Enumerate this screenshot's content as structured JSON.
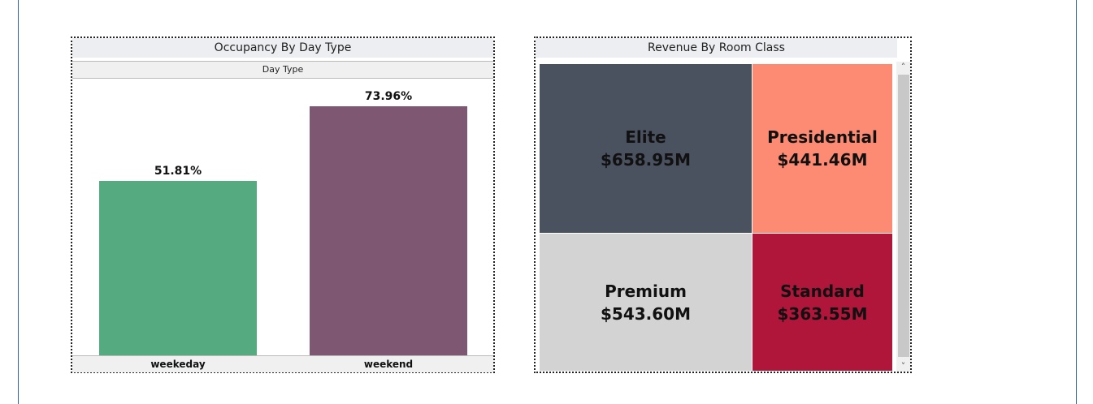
{
  "chart_data": [
    {
      "type": "bar",
      "title": "Occupancy By Day Type",
      "subheader": "Day Type",
      "categories": [
        "weekeday",
        "weekend"
      ],
      "values": [
        51.81,
        73.96
      ],
      "value_labels": [
        "51.81%",
        "73.96%"
      ],
      "ylim": [
        0,
        100
      ],
      "colors": [
        "#56aa80",
        "#7e5872"
      ]
    },
    {
      "type": "treemap",
      "title": "Revenue By Room Class",
      "items": [
        {
          "name": "Elite",
          "value": 658.95,
          "label": "$658.95M",
          "color": "#4a5260"
        },
        {
          "name": "Presidential",
          "value": 441.46,
          "label": "$441.46M",
          "color": "#fd8a72"
        },
        {
          "name": "Premium",
          "value": 543.6,
          "label": "$543.60M",
          "color": "#d3d3d3"
        },
        {
          "name": "Standard",
          "value": 363.55,
          "label": "$363.55M",
          "color": "#b0153a"
        }
      ]
    }
  ],
  "icons": {
    "scroll_up": "chevron-up-icon",
    "scroll_down": "chevron-down-icon"
  }
}
